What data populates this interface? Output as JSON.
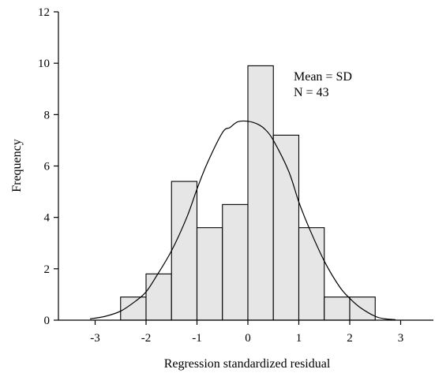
{
  "chart_data": {
    "type": "histogram",
    "xlabel": "Regression standardized residual",
    "ylabel": "Frequency",
    "xlim": [
      -3.9,
      3.6
    ],
    "ylim": [
      0,
      12
    ],
    "xticks": [
      -3,
      -2,
      -1,
      0,
      1,
      2,
      3
    ],
    "xtick_labels": [
      "-3",
      "-2",
      "-1",
      "0",
      "1",
      "2",
      "3"
    ],
    "yticks": [
      0,
      2,
      4,
      6,
      8,
      10,
      12
    ],
    "ytick_labels": [
      "0",
      "2",
      "4",
      "6",
      "8",
      "10",
      "12"
    ],
    "bins": [
      {
        "start": -2.5,
        "end": -2.0,
        "value": 0.9
      },
      {
        "start": -2.0,
        "end": -1.5,
        "value": 1.8
      },
      {
        "start": -1.5,
        "end": -1.0,
        "value": 5.4
      },
      {
        "start": -1.0,
        "end": -0.5,
        "value": 3.6
      },
      {
        "start": -0.5,
        "end": 0.0,
        "value": 4.5
      },
      {
        "start": 0.0,
        "end": 0.5,
        "value": 9.9
      },
      {
        "start": 0.5,
        "end": 1.0,
        "value": 7.2
      },
      {
        "start": 1.0,
        "end": 1.5,
        "value": 3.6
      },
      {
        "start": 1.5,
        "end": 2.0,
        "value": 0.9
      },
      {
        "start": 2.0,
        "end": 2.5,
        "value": 0.9
      }
    ],
    "curve": {
      "x": [
        -3.1,
        -2.8,
        -2.5,
        -2.2,
        -2.0,
        -1.8,
        -1.5,
        -1.2,
        -1.0,
        -0.8,
        -0.5,
        -0.35,
        -0.2,
        0.0,
        0.2,
        0.35,
        0.5,
        0.8,
        1.0,
        1.2,
        1.5,
        1.8,
        2.0,
        2.2,
        2.5,
        2.7,
        2.9
      ],
      "y": [
        0.05,
        0.15,
        0.35,
        0.75,
        1.1,
        1.7,
        2.7,
        4.0,
        5.1,
        6.1,
        7.3,
        7.5,
        7.72,
        7.74,
        7.62,
        7.4,
        7.0,
        5.8,
        4.6,
        3.6,
        2.3,
        1.3,
        0.85,
        0.5,
        0.15,
        0.05,
        0.02
      ]
    },
    "annotations": [
      "Mean = SD",
      "N = 43"
    ],
    "colors": {
      "bar_fill": "#e6e6e6",
      "stroke": "#000000"
    }
  }
}
